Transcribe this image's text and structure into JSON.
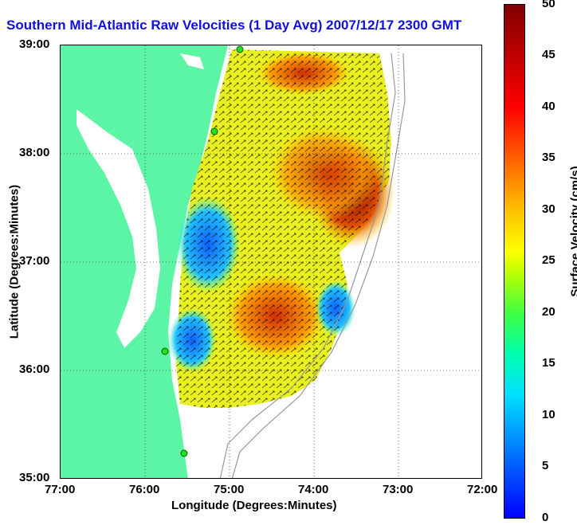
{
  "title": "Southern Mid-Atlantic Raw Velocities (1 Day Avg) 2007/12/17 2300 GMT",
  "chart_data": {
    "type": "heatmap",
    "title": "Southern Mid-Atlantic Raw Velocities (1 Day Avg) 2007/12/17 2300 GMT",
    "xlabel": "Longitude (Degrees:Minutes)",
    "ylabel": "Latitude (Degrees:Minutes)",
    "x_ticks": [
      "77:00",
      "76:00",
      "75:00",
      "74:00",
      "73:00",
      "72:00"
    ],
    "y_ticks": [
      "39:00",
      "38:00",
      "37:00",
      "36:00",
      "35:00"
    ],
    "xlim": [
      -77,
      -72
    ],
    "ylim": [
      35,
      39
    ],
    "grid": true,
    "colorbar": {
      "label": "Surface Velocity (cm/s)",
      "ticks": [
        "0",
        "5",
        "10",
        "15",
        "20",
        "25",
        "30",
        "35",
        "40",
        "45",
        "50"
      ],
      "range": [
        0,
        50
      ]
    }
  },
  "colors": {
    "land": "#5cf5a5",
    "title": "#1010e0"
  }
}
